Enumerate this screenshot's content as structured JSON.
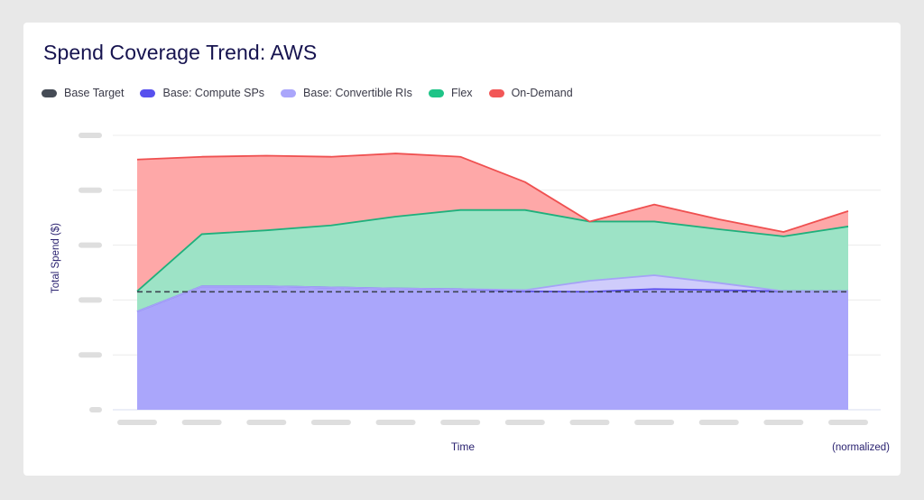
{
  "chart_data": {
    "type": "area",
    "stacked": true,
    "title": "Spend Coverage Trend: AWS",
    "xlabel": "Time",
    "xlabel_note": "(normalized)",
    "ylabel": "Total Spend ($)",
    "ytick_labels_visible": false,
    "xtick_labels_visible": false,
    "y_units": "normalized (gridline step = 1)",
    "ylim": [
      0,
      5
    ],
    "yticks": [
      0,
      1,
      2,
      3,
      4,
      5
    ],
    "grid": true,
    "legend_position": "top-left",
    "x": [
      1,
      2,
      3,
      4,
      5,
      6,
      7,
      8,
      9,
      10,
      11,
      12
    ],
    "series": [
      {
        "name": "Base: Compute SPs",
        "color": "#5b50ec",
        "fill": "#aaa6fb",
        "values": [
          1.79,
          2.25,
          2.25,
          2.23,
          2.21,
          2.2,
          2.16,
          2.15,
          2.2,
          2.18,
          2.16,
          2.16
        ]
      },
      {
        "name": "Base: Convertible RIs",
        "color": "#a6a2f7",
        "fill": "#cfccfb",
        "values": [
          0,
          0,
          0,
          0,
          0,
          0,
          0.02,
          0.2,
          0.25,
          0.13,
          0,
          0
        ]
      },
      {
        "name": "Flex",
        "color": "#1fb07c",
        "fill": "#9de3c6",
        "values": [
          0.37,
          0.95,
          1.02,
          1.13,
          1.31,
          1.44,
          1.46,
          1.08,
          0.98,
          0.98,
          1.0,
          1.18
        ]
      },
      {
        "name": "On-Demand",
        "color": "#ef5050",
        "fill": "#fea8a8",
        "values": [
          2.4,
          1.41,
          1.36,
          1.25,
          1.15,
          0.97,
          0.51,
          0,
          0.31,
          0.18,
          0.08,
          0.28
        ]
      }
    ],
    "reference_lines": [
      {
        "name": "Base Target",
        "color": "#3d4451",
        "style": "dashed",
        "value": 2.15
      }
    ]
  },
  "legend": [
    {
      "label": "Base Target",
      "color": "#454b55"
    },
    {
      "label": "Base: Compute SPs",
      "color": "#5750ee"
    },
    {
      "label": "Base: Convertible RIs",
      "color": "#aaa6fb"
    },
    {
      "label": "Flex",
      "color": "#1ec487"
    },
    {
      "label": "On-Demand",
      "color": "#f25757"
    }
  ]
}
